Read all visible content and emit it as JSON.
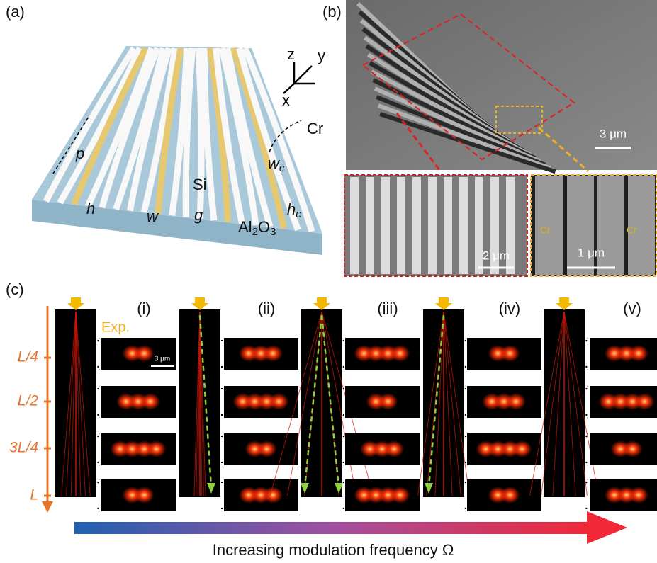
{
  "panels": {
    "a": {
      "label": "(a)",
      "axes": {
        "z": "z",
        "y": "y",
        "x": "x"
      },
      "labels": {
        "cr": "Cr",
        "p": "p",
        "si": "Si",
        "h": "h",
        "w": "w",
        "g": "g",
        "wc": {
          "base": "w",
          "sub": "c"
        },
        "hc": {
          "base": "h",
          "sub": "c"
        },
        "substrate": [
          "Al",
          "2",
          "O",
          "3"
        ]
      }
    },
    "b": {
      "label": "(b)",
      "scale_main": "3 μm",
      "scale_left": "2 μm",
      "scale_right": "1 μm",
      "cr_labels": [
        "Cr",
        "Cr"
      ]
    },
    "c": {
      "label": "(c)",
      "exp": "Exp.",
      "inset_scale": "3 μm",
      "cases": [
        "(i)",
        "(ii)",
        "(iii)",
        "(iv)",
        "(v)"
      ],
      "positions": [
        "L/4",
        "L/2",
        "3L/4",
        "L"
      ],
      "caption": "Increasing modulation frequency Ω"
    }
  }
}
